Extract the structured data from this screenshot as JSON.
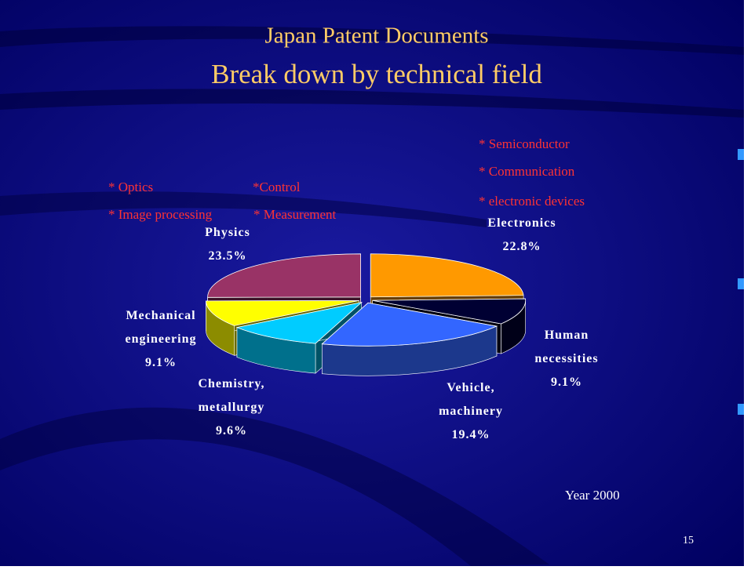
{
  "chart_data": {
    "type": "pie",
    "title": "Japan Patent Documents",
    "subtitle": "Break down by technical field",
    "categories": [
      "Electronics",
      "Human necessities",
      "Vehicle, machinery",
      "Chemistry, metallurgy",
      "Mechanical engineering",
      "Physics"
    ],
    "values": [
      22.8,
      9.1,
      19.4,
      9.6,
      9.1,
      23.5
    ],
    "value_labels": [
      "22.8%",
      "9.1%",
      "19.4%",
      "9.6%",
      "9.1%",
      "23.5%"
    ],
    "colors": [
      "#ff9900",
      "#000033",
      "#3366ff",
      "#00ccff",
      "#ffff00",
      "#993366"
    ],
    "annotations": {
      "physics_notes": [
        "* Optics",
        "*Control",
        "* Image processing",
        "* Measurement"
      ],
      "electronics_notes": [
        "* Semiconductor",
        "* Communication",
        "* electronic devices"
      ]
    },
    "footnote": "Year 2000",
    "page_number": "15"
  }
}
